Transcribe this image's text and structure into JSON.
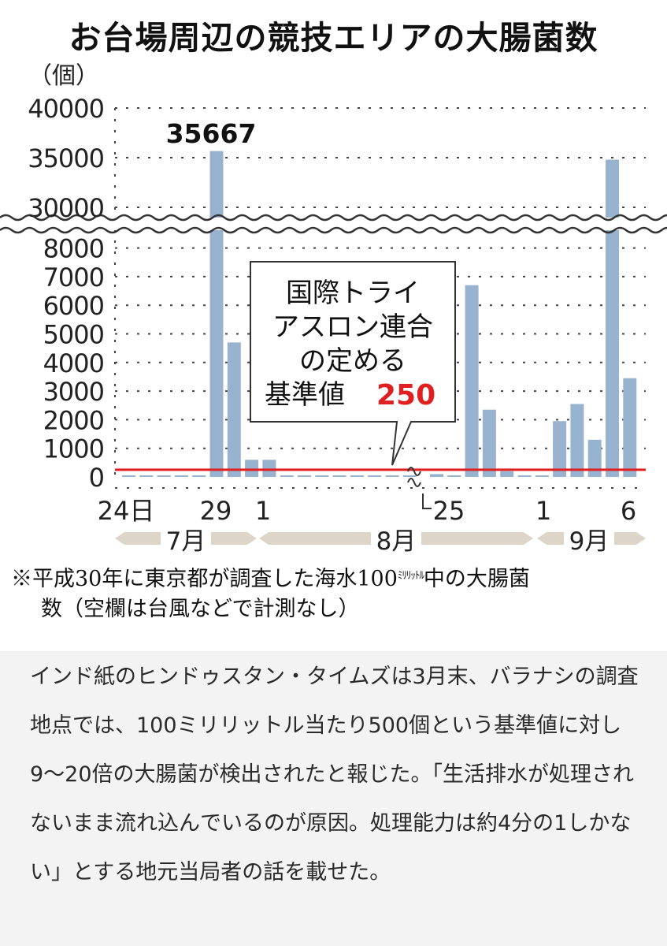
{
  "title": "お台場周辺の競技エリアの大腸菌数",
  "chart_data": {
    "type": "bar",
    "title": "お台場周辺の競技エリアの大腸菌数",
    "ylabel": "（個）",
    "ylim": [
      0,
      40000
    ],
    "y_axis_break": [
      8000,
      30000
    ],
    "yticks": [
      "0",
      "1000",
      "2000",
      "3000",
      "4000",
      "5000",
      "6000",
      "7000",
      "8000",
      "30000",
      "35000",
      "40000"
    ],
    "x_tick_labels": [
      "24日",
      "29",
      "1",
      "25",
      "1",
      "6"
    ],
    "months": [
      "7月",
      "8月",
      "9月"
    ],
    "max_label": "35667",
    "reference_line": {
      "value": 250,
      "color": "#e02020"
    },
    "callout": {
      "lines": [
        "国際トライ",
        "アスロン連合",
        "の定める",
        "基準値"
      ],
      "value": "250"
    },
    "bar_color": "#98b3cf",
    "series": [
      {
        "values": [
          0,
          0,
          0,
          0,
          0,
          35667,
          4700,
          600,
          600,
          50,
          0,
          0,
          0,
          0,
          0,
          0,
          0,
          100,
          0,
          6700,
          2350,
          200,
          0,
          0,
          1950,
          2550,
          1300,
          34800,
          3450
        ]
      }
    ]
  },
  "footnote": {
    "line1_a": "※平成30年に東京都が調査した海水100",
    "line1_unit": "ﾐﾘﾘｯﾄﾙ",
    "line1_b": "中の大腸菌",
    "line2": "数（空欄は台風などで計測なし）"
  },
  "article": {
    "text": "インド紙のヒンドゥスタン・タイムズは3月末、バラナシの調査地点では、100ミリリットル当たり500個という基準値に対し9〜20倍の大腸菌が検出されたと報じた。「生活排水が処理されないまま流れ込んでいるのが原因。処理能力は約4分の1しかない」とする地元当局者の話を載せた。"
  }
}
